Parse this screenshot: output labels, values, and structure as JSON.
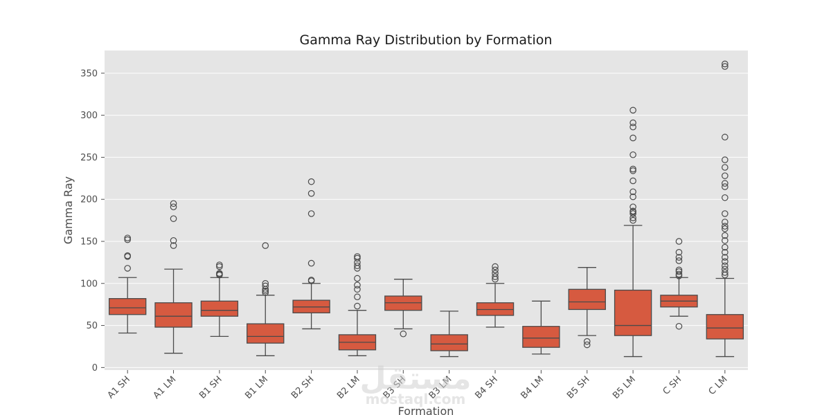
{
  "chart_data": {
    "type": "box",
    "title": "Gamma Ray Distribution by Formation",
    "xlabel": "Formation",
    "ylabel": "Gamma Ray",
    "ylim": [
      -3,
      377
    ],
    "yticks": [
      0,
      50,
      100,
      150,
      200,
      250,
      300,
      350
    ],
    "grid": true,
    "legend": "none",
    "colors": {
      "box_fill": "#D65A40",
      "line": "#4A4A4A",
      "plot_background": "#E5E5E5",
      "grid": "#FFFFFF"
    },
    "categories": [
      "A1 SH",
      "A1 LM",
      "B1 SH",
      "B1 LM",
      "B2 SH",
      "B2 LM",
      "B3 SH",
      "B3 LM",
      "B4 SH",
      "B4 LM",
      "B5 SH",
      "B5 LM",
      "C SH",
      "C LM"
    ],
    "boxes": [
      {
        "category": "A1 SH",
        "whisker_low": 41,
        "q1": 63,
        "median": 71,
        "q3": 82,
        "whisker_high": 107,
        "outliers": [
          118,
          132,
          133,
          152,
          154
        ]
      },
      {
        "category": "A1 LM",
        "whisker_low": 17,
        "q1": 48,
        "median": 61,
        "q3": 77,
        "whisker_high": 117,
        "outliers": [
          145,
          151,
          177,
          191,
          195
        ]
      },
      {
        "category": "B1 SH",
        "whisker_low": 37,
        "q1": 61,
        "median": 68,
        "q3": 79,
        "whisker_high": 107,
        "outliers": [
          110,
          111,
          112,
          120,
          122
        ]
      },
      {
        "category": "B1 LM",
        "whisker_low": 14,
        "q1": 29,
        "median": 37,
        "q3": 52,
        "whisker_high": 86,
        "outliers": [
          89,
          91,
          93,
          97,
          100,
          145
        ]
      },
      {
        "category": "B2 SH",
        "whisker_low": 46,
        "q1": 65,
        "median": 72,
        "q3": 80,
        "whisker_high": 100,
        "outliers": [
          103,
          104,
          124,
          183,
          207,
          221
        ]
      },
      {
        "category": "B2 LM",
        "whisker_low": 14,
        "q1": 21,
        "median": 30,
        "q3": 39,
        "whisker_high": 68,
        "outliers": [
          73,
          84,
          93,
          98,
          106,
          118,
          121,
          125,
          130,
          132
        ]
      },
      {
        "category": "B3 SH",
        "whisker_low": 46,
        "q1": 68,
        "median": 77,
        "q3": 85,
        "whisker_high": 105,
        "outliers": [
          40
        ]
      },
      {
        "category": "B3 LM",
        "whisker_low": 13,
        "q1": 20,
        "median": 28,
        "q3": 39,
        "whisker_high": 67,
        "outliers": []
      },
      {
        "category": "B4 SH",
        "whisker_low": 48,
        "q1": 62,
        "median": 69,
        "q3": 77,
        "whisker_high": 100,
        "outliers": [
          105,
          108,
          112,
          116,
          120
        ]
      },
      {
        "category": "B4 LM",
        "whisker_low": 16,
        "q1": 24,
        "median": 35,
        "q3": 49,
        "whisker_high": 79,
        "outliers": []
      },
      {
        "category": "B5 SH",
        "whisker_low": 38,
        "q1": 69,
        "median": 78,
        "q3": 93,
        "whisker_high": 119,
        "outliers": [
          27,
          31
        ]
      },
      {
        "category": "B5 LM",
        "whisker_low": 13,
        "q1": 38,
        "median": 50,
        "q3": 92,
        "whisker_high": 169,
        "outliers": [
          175,
          178,
          183,
          185,
          186,
          191,
          203,
          209,
          222,
          234,
          236,
          253,
          273,
          286,
          291,
          306
        ]
      },
      {
        "category": "C SH",
        "whisker_low": 61,
        "q1": 72,
        "median": 79,
        "q3": 86,
        "whisker_high": 107,
        "outliers": [
          49,
          109,
          111,
          114,
          116,
          127,
          131,
          137,
          150
        ]
      },
      {
        "category": "C LM",
        "whisker_low": 13,
        "q1": 34,
        "median": 47,
        "q3": 63,
        "whisker_high": 106,
        "outliers": [
          110,
          113,
          117,
          121,
          126,
          131,
          137,
          143,
          151,
          157,
          165,
          168,
          173,
          183,
          202,
          215,
          219,
          228,
          238,
          247,
          274,
          358,
          361
        ]
      }
    ]
  },
  "watermark": {
    "arabic": "مستقل",
    "latin": "mostaql.com"
  }
}
